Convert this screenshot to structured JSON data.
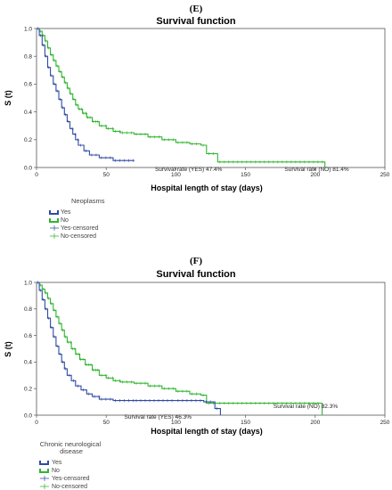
{
  "chart_data": [
    {
      "type": "line",
      "panel_label": "(E)",
      "title": "Survival function",
      "xlabel": "Hospital length of stay (days)",
      "ylabel": "S (t)",
      "xlim": [
        0,
        250
      ],
      "ylim": [
        0,
        1.0
      ],
      "xticks": [
        "0",
        "50",
        "100",
        "150",
        "200",
        "250"
      ],
      "yticks": [
        "0.0",
        "0.2",
        "0.4",
        "0.6",
        "0.8",
        "1.0"
      ],
      "legend_title": "Neoplasms",
      "legend_entries": [
        "Yes",
        "No",
        "Yes-censored",
        "No-censored"
      ],
      "annotations": [
        {
          "text": "Survival rate (YES) 47.4%",
          "x": 85,
          "y": 0.0
        },
        {
          "text": "Survival rate (NO) 81.4%",
          "x": 178,
          "y": 0.0
        }
      ],
      "colors": {
        "Yes": "#2f4ba3",
        "No": "#2fb52f"
      },
      "series": [
        {
          "name": "Yes",
          "steps": [
            [
              0,
              1.0
            ],
            [
              2,
              0.95
            ],
            [
              4,
              0.88
            ],
            [
              6,
              0.8
            ],
            [
              8,
              0.72
            ],
            [
              10,
              0.66
            ],
            [
              12,
              0.6
            ],
            [
              14,
              0.55
            ],
            [
              16,
              0.49
            ],
            [
              18,
              0.43
            ],
            [
              20,
              0.38
            ],
            [
              22,
              0.33
            ],
            [
              24,
              0.28
            ],
            [
              26,
              0.24
            ],
            [
              28,
              0.2
            ],
            [
              30,
              0.16
            ],
            [
              34,
              0.12
            ],
            [
              38,
              0.09
            ],
            [
              45,
              0.07
            ],
            [
              55,
              0.05
            ],
            [
              70,
              0.05
            ]
          ]
        },
        {
          "name": "No",
          "steps": [
            [
              0,
              1.0
            ],
            [
              2,
              0.98
            ],
            [
              4,
              0.95
            ],
            [
              6,
              0.91
            ],
            [
              8,
              0.86
            ],
            [
              10,
              0.81
            ],
            [
              12,
              0.77
            ],
            [
              14,
              0.73
            ],
            [
              16,
              0.69
            ],
            [
              18,
              0.65
            ],
            [
              20,
              0.61
            ],
            [
              22,
              0.57
            ],
            [
              24,
              0.53
            ],
            [
              26,
              0.49
            ],
            [
              28,
              0.45
            ],
            [
              30,
              0.42
            ],
            [
              33,
              0.39
            ],
            [
              36,
              0.36
            ],
            [
              40,
              0.33
            ],
            [
              45,
              0.3
            ],
            [
              50,
              0.28
            ],
            [
              55,
              0.26
            ],
            [
              60,
              0.25
            ],
            [
              70,
              0.24
            ],
            [
              80,
              0.22
            ],
            [
              90,
              0.2
            ],
            [
              100,
              0.18
            ],
            [
              110,
              0.17
            ],
            [
              118,
              0.16
            ],
            [
              122,
              0.1
            ],
            [
              130,
              0.04
            ],
            [
              207,
              0.04
            ],
            [
              207,
              0.0
            ]
          ]
        }
      ]
    },
    {
      "type": "line",
      "panel_label": "(F)",
      "title": "Survival function",
      "xlabel": "Hospital length of stay (days)",
      "ylabel": "S (t)",
      "xlim": [
        0,
        250
      ],
      "ylim": [
        0,
        1.0
      ],
      "xticks": [
        "0",
        "50",
        "100",
        "150",
        "200",
        "250"
      ],
      "yticks": [
        "0.0",
        "0.2",
        "0.4",
        "0.6",
        "0.8",
        "1.0"
      ],
      "legend_title": "Chronic neurological disease",
      "legend_entries": [
        "Yes",
        "No",
        "Yes-censored",
        "No-censored"
      ],
      "annotations": [
        {
          "text": "Survival rate (YES) 46.3%",
          "x": 63,
          "y": 0.0
        },
        {
          "text": "Survival rate (NO) 82.3%",
          "x": 170,
          "y": 0.08
        }
      ],
      "colors": {
        "Yes": "#2f4ba3",
        "No": "#2fb52f"
      },
      "series": [
        {
          "name": "Yes",
          "steps": [
            [
              0,
              1.0
            ],
            [
              2,
              0.94
            ],
            [
              4,
              0.87
            ],
            [
              6,
              0.8
            ],
            [
              8,
              0.73
            ],
            [
              10,
              0.66
            ],
            [
              12,
              0.59
            ],
            [
              14,
              0.52
            ],
            [
              16,
              0.46
            ],
            [
              18,
              0.4
            ],
            [
              20,
              0.35
            ],
            [
              22,
              0.3
            ],
            [
              25,
              0.26
            ],
            [
              28,
              0.22
            ],
            [
              32,
              0.19
            ],
            [
              36,
              0.16
            ],
            [
              40,
              0.14
            ],
            [
              45,
              0.12
            ],
            [
              55,
              0.11
            ],
            [
              70,
              0.11
            ],
            [
              100,
              0.11
            ],
            [
              120,
              0.1
            ],
            [
              128,
              0.05
            ],
            [
              132,
              0.05
            ],
            [
              132,
              0.0
            ]
          ]
        },
        {
          "name": "No",
          "steps": [
            [
              0,
              1.0
            ],
            [
              2,
              0.98
            ],
            [
              4,
              0.95
            ],
            [
              6,
              0.92
            ],
            [
              8,
              0.88
            ],
            [
              10,
              0.84
            ],
            [
              12,
              0.79
            ],
            [
              14,
              0.74
            ],
            [
              16,
              0.69
            ],
            [
              18,
              0.64
            ],
            [
              20,
              0.59
            ],
            [
              22,
              0.55
            ],
            [
              25,
              0.5
            ],
            [
              28,
              0.46
            ],
            [
              31,
              0.42
            ],
            [
              35,
              0.38
            ],
            [
              40,
              0.34
            ],
            [
              45,
              0.3
            ],
            [
              50,
              0.28
            ],
            [
              55,
              0.26
            ],
            [
              60,
              0.25
            ],
            [
              70,
              0.24
            ],
            [
              80,
              0.22
            ],
            [
              90,
              0.2
            ],
            [
              100,
              0.18
            ],
            [
              110,
              0.16
            ],
            [
              118,
              0.15
            ],
            [
              122,
              0.09
            ],
            [
              130,
              0.09
            ],
            [
              205,
              0.09
            ],
            [
              205,
              0.0
            ]
          ]
        }
      ]
    }
  ]
}
